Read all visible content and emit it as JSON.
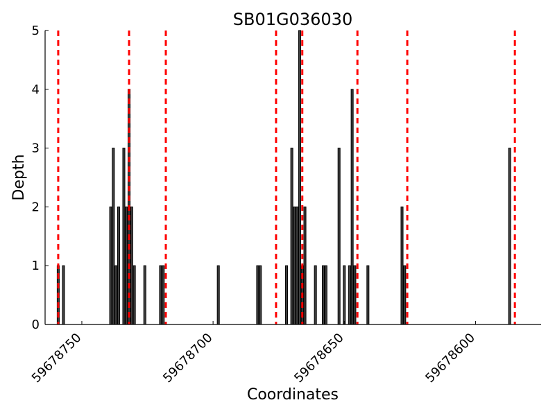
{
  "chart_data": {
    "type": "bar",
    "title": "SB01G036030",
    "xlabel": "Coordinates",
    "ylabel": "Depth",
    "x_direction": "descending",
    "xlim": [
      59678764,
      59678575
    ],
    "ylim": [
      0,
      5
    ],
    "x_ticks": [
      59678750,
      59678700,
      59678650,
      59678600
    ],
    "y_ticks": [
      0,
      1,
      2,
      3,
      4,
      5
    ],
    "bars": [
      {
        "x": 59678759,
        "y": 1
      },
      {
        "x": 59678757,
        "y": 1
      },
      {
        "x": 59678739,
        "y": 2
      },
      {
        "x": 59678738,
        "y": 3
      },
      {
        "x": 59678737,
        "y": 1
      },
      {
        "x": 59678736,
        "y": 2
      },
      {
        "x": 59678734,
        "y": 3
      },
      {
        "x": 59678733,
        "y": 2
      },
      {
        "x": 59678732,
        "y": 4
      },
      {
        "x": 59678731,
        "y": 2
      },
      {
        "x": 59678730,
        "y": 1
      },
      {
        "x": 59678726,
        "y": 1
      },
      {
        "x": 59678720,
        "y": 1
      },
      {
        "x": 59678719,
        "y": 1
      },
      {
        "x": 59678698,
        "y": 1
      },
      {
        "x": 59678683,
        "y": 1
      },
      {
        "x": 59678682,
        "y": 1
      },
      {
        "x": 59678672,
        "y": 1
      },
      {
        "x": 59678670,
        "y": 3
      },
      {
        "x": 59678669,
        "y": 2
      },
      {
        "x": 59678668,
        "y": 2
      },
      {
        "x": 59678667,
        "y": 5
      },
      {
        "x": 59678666,
        "y": 1
      },
      {
        "x": 59678665,
        "y": 2
      },
      {
        "x": 59678661,
        "y": 1
      },
      {
        "x": 59678658,
        "y": 1
      },
      {
        "x": 59678657,
        "y": 1
      },
      {
        "x": 59678652,
        "y": 3
      },
      {
        "x": 59678650,
        "y": 1
      },
      {
        "x": 59678648,
        "y": 1
      },
      {
        "x": 59678647,
        "y": 4
      },
      {
        "x": 59678646,
        "y": 1
      },
      {
        "x": 59678641,
        "y": 1
      },
      {
        "x": 59678628,
        "y": 2
      },
      {
        "x": 59678627,
        "y": 1
      },
      {
        "x": 59678587,
        "y": 3
      }
    ],
    "reference_lines": {
      "color": "#ff0000",
      "style": "dashed",
      "x": [
        59678759,
        59678732,
        59678718,
        59678676,
        59678666,
        59678645,
        59678626,
        59678585
      ]
    },
    "bar_color": "#404040",
    "bar_edge_color": "#000000"
  }
}
